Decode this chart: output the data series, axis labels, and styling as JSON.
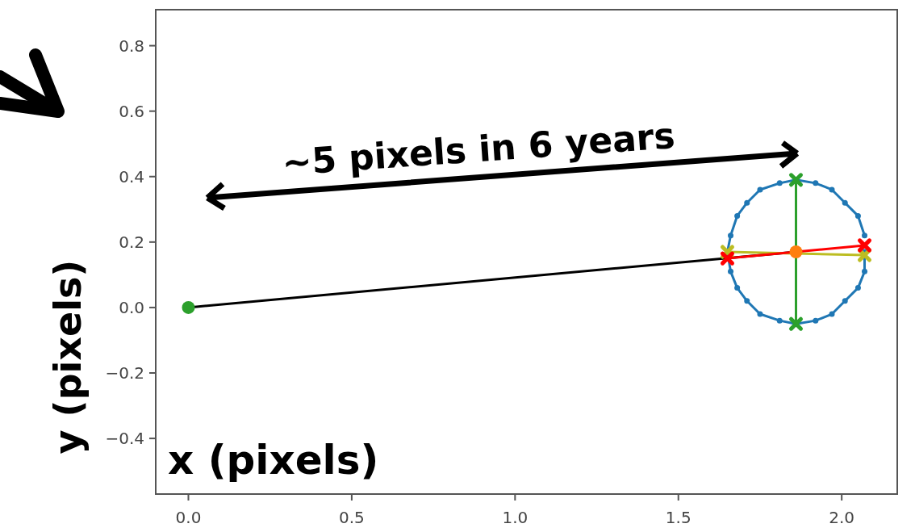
{
  "chart_data": {
    "type": "line",
    "xlabel": "x (pixels)",
    "ylabel": "y (pixels)",
    "annotations": [
      "~5 pixels in 6 years"
    ],
    "xlim": [
      -0.1,
      2.17
    ],
    "ylim": [
      -0.57,
      0.91
    ],
    "xticks": [
      {
        "value": 0,
        "label": "0.0"
      },
      {
        "value": 0.5,
        "label": "0.5"
      },
      {
        "value": 1,
        "label": "1.0"
      },
      {
        "value": 1.5,
        "label": "1.5"
      },
      {
        "value": 2,
        "label": "2.0"
      }
    ],
    "yticks": [
      {
        "value": -0.4,
        "label": "−0.4"
      },
      {
        "value": -0.2,
        "label": "−0.2"
      },
      {
        "value": 0,
        "label": "0.0"
      },
      {
        "value": 0.2,
        "label": "0.2"
      },
      {
        "value": 0.4,
        "label": "0.4"
      },
      {
        "value": 0.6,
        "label": "0.6"
      },
      {
        "value": 0.8,
        "label": "0.8"
      }
    ],
    "grid": false,
    "series": [
      {
        "color": "#1f77b4",
        "marker": "circle",
        "x": [
          1.65,
          1.66,
          1.68,
          1.71,
          1.75,
          1.81,
          1.86,
          1.92,
          1.97,
          2.01,
          2.05,
          2.07
        ],
        "values": [
          0.17,
          0.22,
          0.28,
          0.32,
          0.36,
          0.38,
          0.39,
          0.38,
          0.36,
          0.32,
          0.28,
          0.22
        ]
      },
      {
        "color": "#1f77b4",
        "marker": "circle",
        "x": [
          1.65,
          1.66,
          1.68,
          1.71,
          1.75,
          1.81,
          1.86,
          1.92,
          1.97,
          2.01,
          2.05,
          2.07,
          2.07
        ],
        "values": [
          0.17,
          0.11,
          0.06,
          0.02,
          -0.02,
          -0.04,
          -0.05,
          -0.04,
          -0.02,
          0.02,
          0.06,
          0.11,
          0.17
        ]
      },
      {
        "color": "#000000",
        "marker": "none",
        "x": [
          0,
          1.86
        ],
        "values": [
          0,
          0.17
        ]
      },
      {
        "color": "#2ca02c",
        "marker": "cross",
        "x": [
          1.86,
          1.86
        ],
        "values": [
          0.39,
          -0.05
        ]
      },
      {
        "color": "#bcbd22",
        "marker": "cross",
        "x": [
          1.65,
          2.07
        ],
        "values": [
          0.17,
          0.16
        ]
      },
      {
        "color": "#ff0000",
        "marker": "cross",
        "x": [
          1.65,
          2.07
        ],
        "values": [
          0.15,
          0.19
        ]
      },
      {
        "type": "scatter",
        "color": "#2ca02c",
        "marker": "circle",
        "x": [
          0
        ],
        "values": [
          0
        ]
      },
      {
        "type": "scatter",
        "color": "#ff7f0e",
        "marker": "circle",
        "x": [
          1.86
        ],
        "values": [
          0.17
        ]
      }
    ]
  }
}
